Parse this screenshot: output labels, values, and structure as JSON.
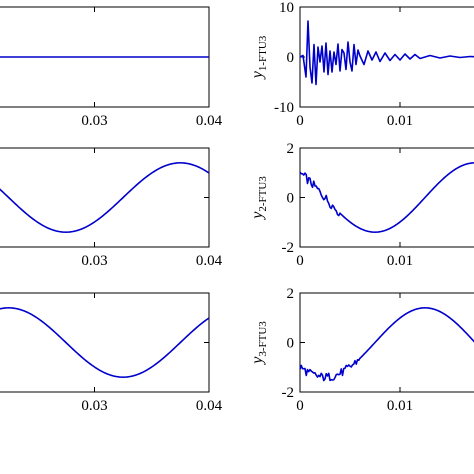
{
  "chart_data": [
    {
      "type": "line",
      "panel": "left-top",
      "xlim": [
        0.02,
        0.04
      ],
      "ylim": [
        -10,
        10
      ],
      "xticks": [
        "0.03",
        "0.04"
      ],
      "series": [
        {
          "x": [
            0.02,
            0.04
          ],
          "y": [
            0,
            0
          ],
          "color": "#0000cc"
        }
      ]
    },
    {
      "type": "line",
      "panel": "right-top",
      "ylabel": "y",
      "ylabel_sub": "1-FTU3",
      "xlim": [
        0,
        0.02
      ],
      "ylim": [
        -10,
        10
      ],
      "xticks": [
        "0",
        "0.01"
      ],
      "yticks": [
        "10",
        "0",
        "-10"
      ],
      "series": [
        {
          "x": [
            0,
            0.0003,
            0.0006,
            0.0008,
            0.001,
            0.0012,
            0.0014,
            0.0016,
            0.0018,
            0.002,
            0.0022,
            0.0024,
            0.0026,
            0.0028,
            0.003,
            0.0032,
            0.0034,
            0.0036,
            0.0038,
            0.004,
            0.0042,
            0.0044,
            0.0046,
            0.0048,
            0.005,
            0.0052,
            0.0054,
            0.0056,
            0.0058,
            0.006,
            0.0064,
            0.0068,
            0.0072,
            0.0076,
            0.008,
            0.0085,
            0.009,
            0.0095,
            0.01,
            0.0105,
            0.011,
            0.0115,
            0.012,
            0.013,
            0.014,
            0.015,
            0.016,
            0.017,
            0.018,
            0.019,
            0.02
          ],
          "y": [
            0,
            0.3,
            -4,
            7.2,
            -2,
            -5.2,
            2.5,
            -5.5,
            2,
            -1,
            2.2,
            -3,
            2.8,
            -3.5,
            1.2,
            -3,
            1,
            -1.5,
            2.6,
            -2.8,
            1.5,
            0.8,
            -2.5,
            3,
            -1,
            -2.8,
            2.5,
            -1.5,
            1.4,
            0.2,
            -1.5,
            1.2,
            -0.6,
            1,
            -0.9,
            0.8,
            -0.7,
            0.5,
            -0.6,
            0.6,
            -0.4,
            0.5,
            -0.3,
            0.3,
            -0.2,
            0.2,
            -0.1,
            0.1,
            0,
            0.1,
            0
          ],
          "color": "#0000cc"
        }
      ]
    },
    {
      "type": "line",
      "panel": "left-middle",
      "xlim": [
        0.02,
        0.04
      ],
      "ylim": [
        -2,
        2
      ],
      "xticks": [
        "0.03",
        "0.04"
      ],
      "series": [
        {
          "type": "sine",
          "amplitude": 1.4,
          "period": 0.02,
          "min_at": 0.0275,
          "x_range": [
            0.02,
            0.04
          ],
          "color": "#0000cc"
        }
      ]
    },
    {
      "type": "line",
      "panel": "right-middle",
      "ylabel": "y",
      "ylabel_sub": "2-FTU3",
      "xlim": [
        0,
        0.02
      ],
      "ylim": [
        -2,
        2
      ],
      "xticks": [
        "0",
        "0.01"
      ],
      "yticks": [
        "2",
        "0",
        "-2"
      ],
      "series": [
        {
          "type": "sine",
          "amplitude": 1.4,
          "period": 0.02,
          "min_at": 0.0075,
          "x_range": [
            0,
            0.02
          ],
          "noise_until": 0.004,
          "color": "#0000cc"
        }
      ]
    },
    {
      "type": "line",
      "panel": "left-bottom",
      "xlim": [
        0.02,
        0.04
      ],
      "ylim": [
        -2,
        2
      ],
      "xticks": [
        "0.03",
        "0.04"
      ],
      "series": [
        {
          "type": "sine",
          "amplitude": 1.4,
          "period": 0.02,
          "min_at": 0.0325,
          "x_range": [
            0.02,
            0.04
          ],
          "color": "#0000cc"
        }
      ]
    },
    {
      "type": "line",
      "panel": "right-bottom",
      "ylabel": "y",
      "ylabel_sub": "3-FTU3",
      "xlim": [
        0,
        0.02
      ],
      "ylim": [
        -2,
        2
      ],
      "xticks": [
        "0",
        "0.01"
      ],
      "yticks": [
        "2",
        "0",
        "-2"
      ],
      "series": [
        {
          "type": "sine",
          "amplitude": 1.4,
          "period": 0.02,
          "min_at": 0.0025,
          "x_range": [
            0,
            0.02
          ],
          "noise_until": 0.006,
          "color": "#0000cc"
        }
      ]
    }
  ]
}
